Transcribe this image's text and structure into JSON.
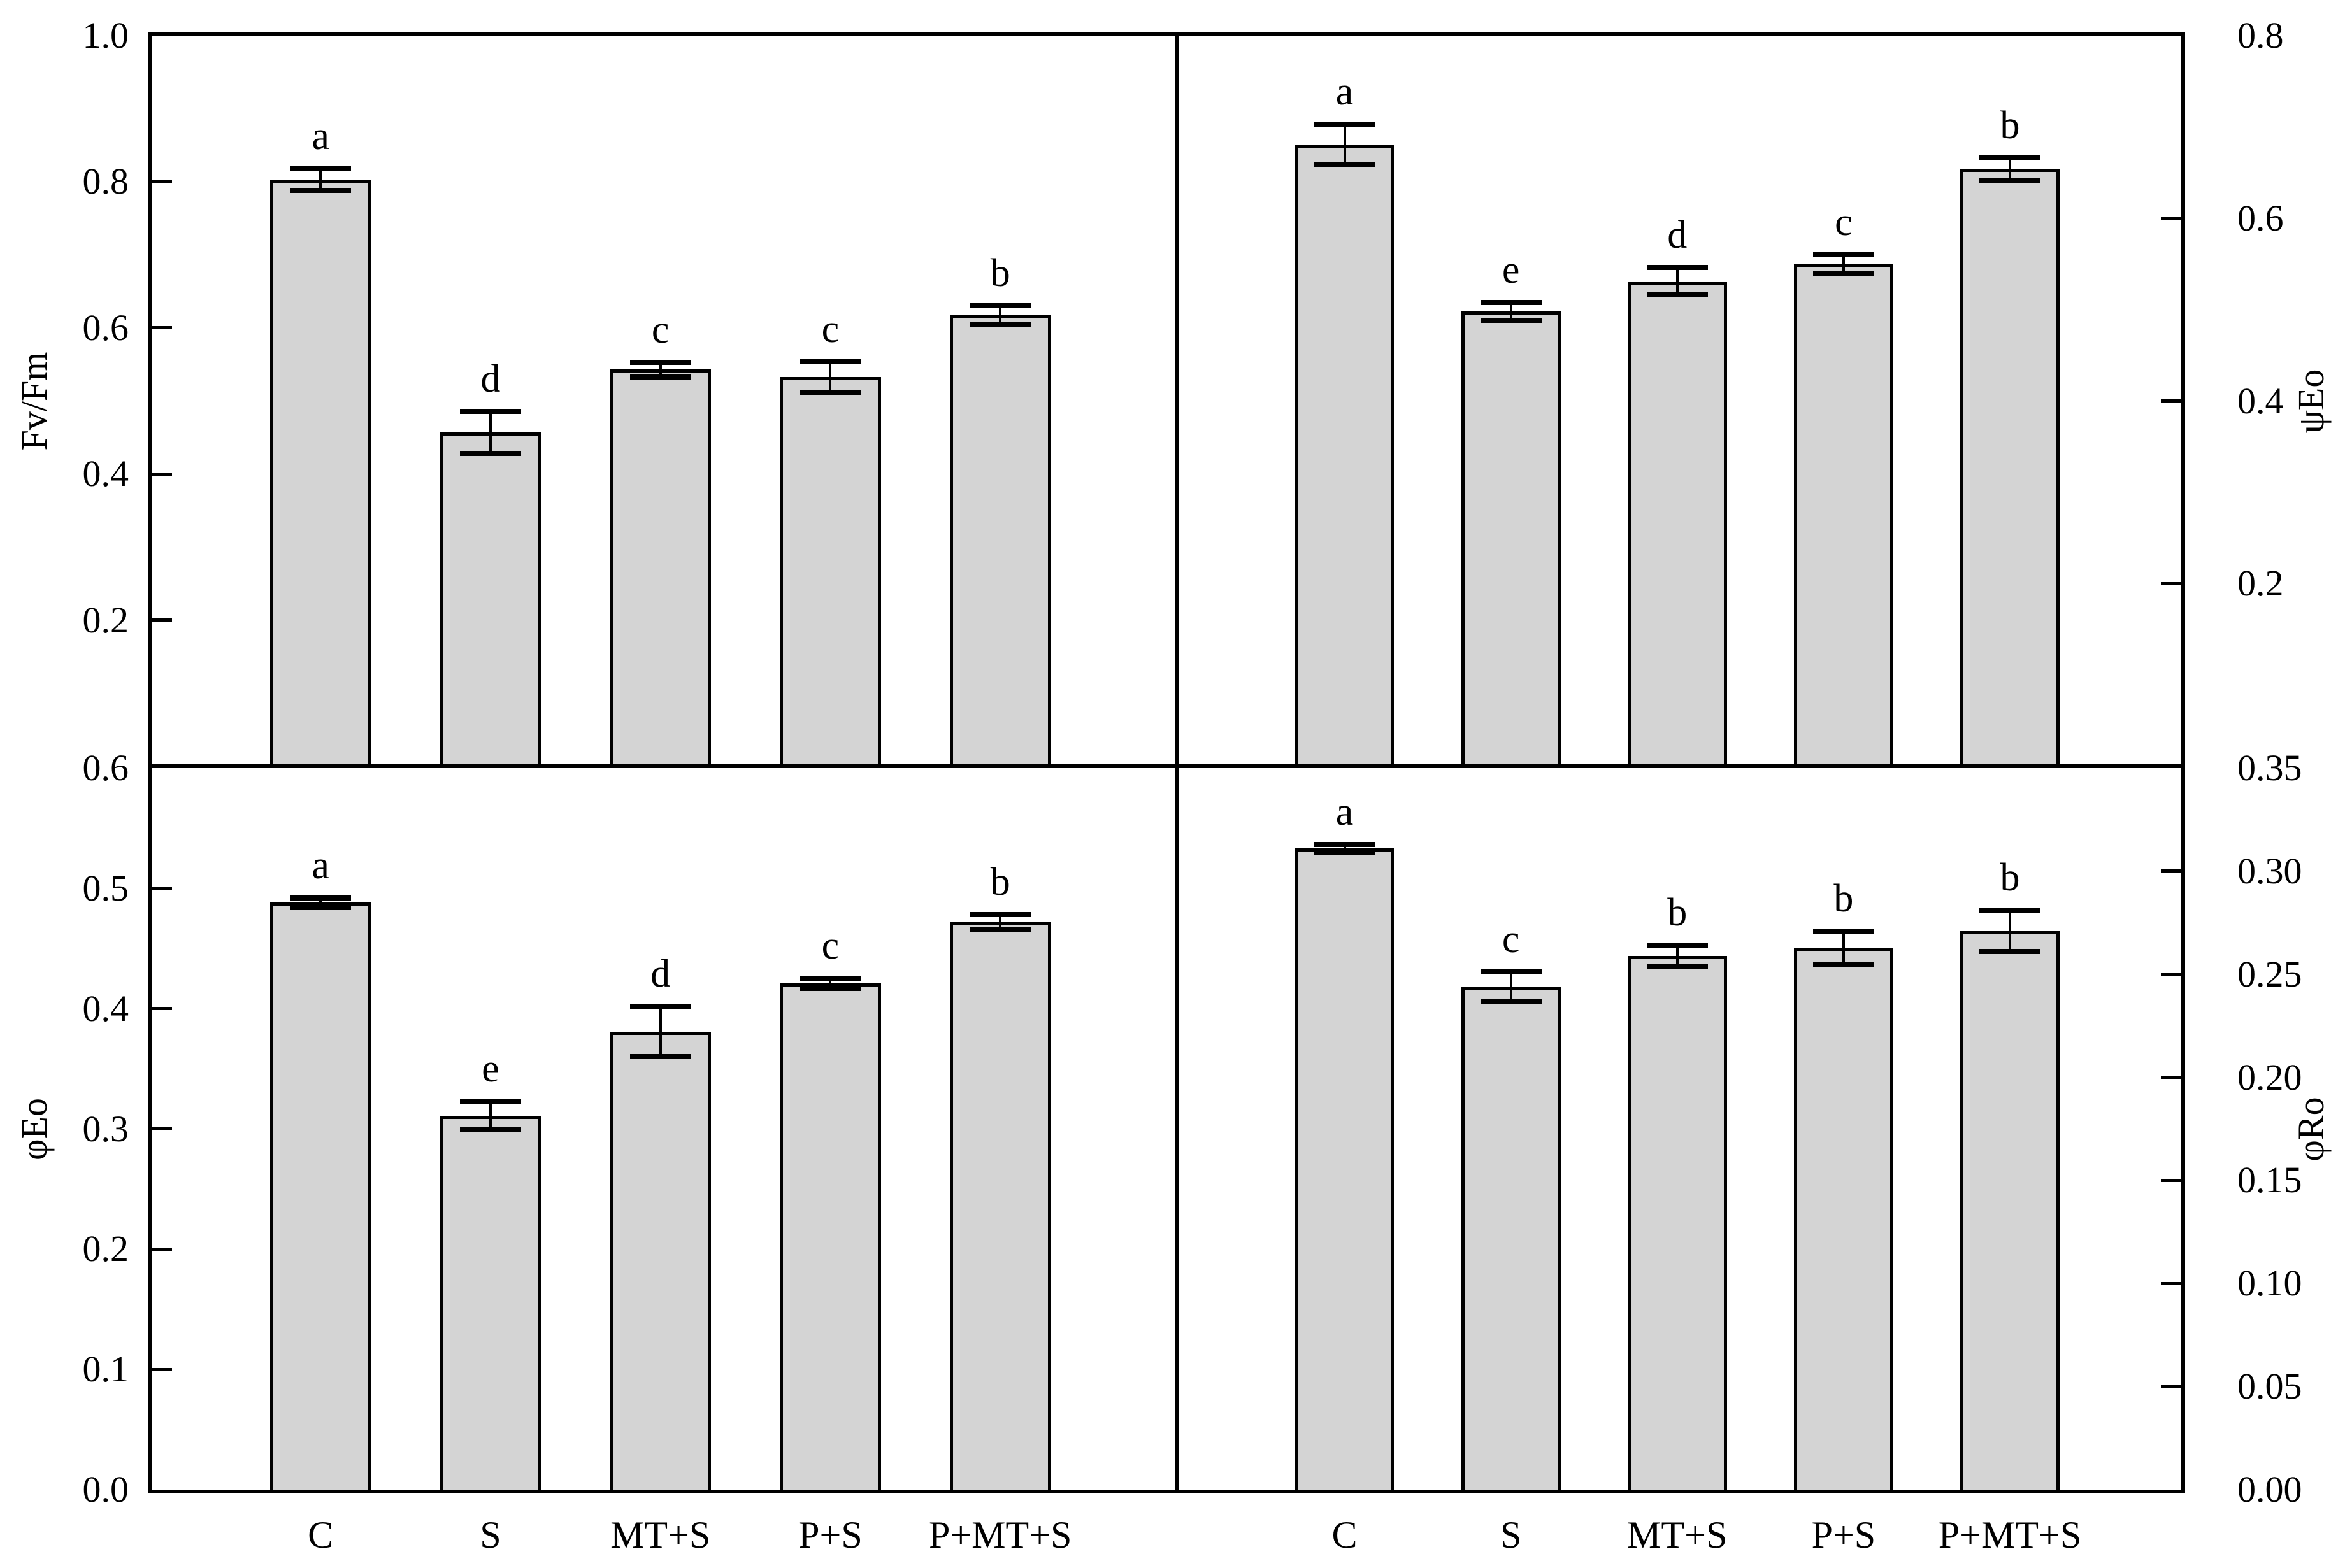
{
  "figure": {
    "background": "#ffffff",
    "text_color": "#000000",
    "bar_fill": "#d4d4d4",
    "bar_border": "#000000",
    "axis_color": "#000000"
  },
  "categories": [
    "C",
    "S",
    "MT+S",
    "P+S",
    "P+MT+S"
  ],
  "chart_data": [
    {
      "type": "bar",
      "position": "top-left",
      "ylabel": "Fv/Fm",
      "ylabel_side": "left",
      "ylim": [
        0,
        1.0
      ],
      "grid": false,
      "yticks": [
        {
          "value": 1.0,
          "label": "1.0",
          "tick_mark": false
        },
        {
          "value": 0.8,
          "label": "0.8",
          "tick_mark": true
        },
        {
          "value": 0.6,
          "label": "0.6",
          "tick_mark": true
        },
        {
          "value": 0.4,
          "label": "0.4",
          "tick_mark": true
        },
        {
          "value": 0.2,
          "label": "0.2",
          "tick_mark": true
        }
      ],
      "categories": [
        "C",
        "S",
        "MT+S",
        "P+S",
        "P+MT+S"
      ],
      "values": [
        0.803,
        0.457,
        0.543,
        0.533,
        0.617
      ],
      "errors": [
        0.015,
        0.029,
        0.01,
        0.021,
        0.013
      ],
      "sig_letters": [
        "a",
        "d",
        "c",
        "c",
        "b"
      ],
      "show_x_labels": false
    },
    {
      "type": "bar",
      "position": "top-right",
      "ylabel": "ψEo",
      "ylabel_side": "right",
      "ylim": [
        0,
        0.8
      ],
      "grid": false,
      "yticks": [
        {
          "value": 0.8,
          "label": "0.8",
          "tick_mark": false
        },
        {
          "value": 0.6,
          "label": "0.6",
          "tick_mark": true
        },
        {
          "value": 0.4,
          "label": "0.4",
          "tick_mark": true
        },
        {
          "value": 0.2,
          "label": "0.2",
          "tick_mark": true
        }
      ],
      "categories": [
        "C",
        "S",
        "MT+S",
        "P+S",
        "P+MT+S"
      ],
      "values": [
        0.681,
        0.498,
        0.531,
        0.55,
        0.654
      ],
      "errors": [
        0.022,
        0.01,
        0.015,
        0.01,
        0.012
      ],
      "sig_letters": [
        "a",
        "e",
        "d",
        "c",
        "b"
      ],
      "show_x_labels": false
    },
    {
      "type": "bar",
      "position": "bottom-left",
      "ylabel": "φEo",
      "ylabel_side": "left",
      "ylim": [
        0,
        0.6
      ],
      "grid": false,
      "yticks": [
        {
          "value": 0.6,
          "label": "0.6",
          "tick_mark": false
        },
        {
          "value": 0.5,
          "label": "0.5",
          "tick_mark": true
        },
        {
          "value": 0.4,
          "label": "0.4",
          "tick_mark": true
        },
        {
          "value": 0.3,
          "label": "0.3",
          "tick_mark": true
        },
        {
          "value": 0.2,
          "label": "0.2",
          "tick_mark": true
        },
        {
          "value": 0.1,
          "label": "0.1",
          "tick_mark": true
        },
        {
          "value": 0.0,
          "label": "0.0",
          "tick_mark": false
        }
      ],
      "categories": [
        "C",
        "S",
        "MT+S",
        "P+S",
        "P+MT+S"
      ],
      "values": [
        0.488,
        0.311,
        0.381,
        0.421,
        0.472
      ],
      "errors": [
        0.004,
        0.012,
        0.021,
        0.004,
        0.006
      ],
      "sig_letters": [
        "a",
        "e",
        "d",
        "c",
        "b"
      ],
      "show_x_labels": true
    },
    {
      "type": "bar",
      "position": "bottom-right",
      "ylabel": "φRo",
      "ylabel_side": "right",
      "ylim": [
        0,
        0.35
      ],
      "grid": false,
      "yticks": [
        {
          "value": 0.35,
          "label": "0.35",
          "tick_mark": false
        },
        {
          "value": 0.3,
          "label": "0.30",
          "tick_mark": true
        },
        {
          "value": 0.25,
          "label": "0.25",
          "tick_mark": true
        },
        {
          "value": 0.2,
          "label": "0.20",
          "tick_mark": true
        },
        {
          "value": 0.15,
          "label": "0.15",
          "tick_mark": true
        },
        {
          "value": 0.1,
          "label": "0.10",
          "tick_mark": true
        },
        {
          "value": 0.05,
          "label": "0.05",
          "tick_mark": true
        },
        {
          "value": 0.0,
          "label": "0.00",
          "tick_mark": false
        }
      ],
      "categories": [
        "C",
        "S",
        "MT+S",
        "P+S",
        "P+MT+S"
      ],
      "values": [
        0.311,
        0.244,
        0.259,
        0.263,
        0.271
      ],
      "errors": [
        0.002,
        0.007,
        0.005,
        0.008,
        0.01
      ],
      "sig_letters": [
        "a",
        "c",
        "b",
        "b",
        "b"
      ],
      "show_x_labels": true
    }
  ]
}
